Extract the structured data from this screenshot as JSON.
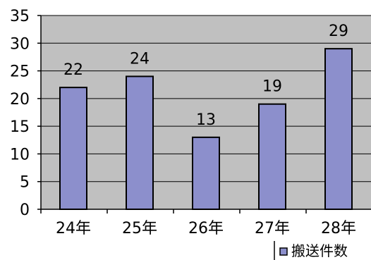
{
  "chart_data": {
    "type": "bar",
    "categories": [
      "24年",
      "25年",
      "26年",
      "27年",
      "28年"
    ],
    "series": [
      {
        "name": "搬送件数",
        "values": [
          22,
          24,
          13,
          19,
          29
        ]
      }
    ],
    "title": "",
    "xlabel": "",
    "ylabel": "",
    "ylim": [
      0,
      35
    ],
    "yticks": [
      "0",
      "5",
      "10",
      "15",
      "20",
      "25",
      "30",
      "35"
    ],
    "grid": true,
    "legend_position": "bottom-right",
    "data_labels": [
      "22",
      "24",
      "13",
      "19",
      "29"
    ]
  },
  "colors": {
    "plot_background": "#c0c0c0",
    "bar_fill": "#8c8fcc",
    "bar_stroke": "#000000",
    "grid": "#000000",
    "axis": "#000000"
  }
}
